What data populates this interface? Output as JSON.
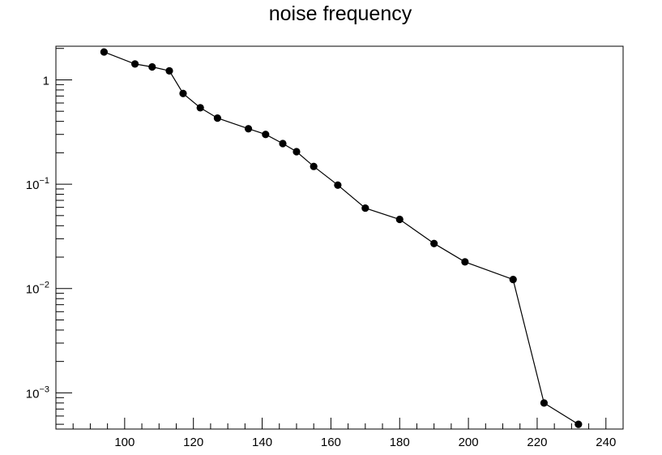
{
  "chart_data": {
    "type": "line",
    "title": "noise frequency",
    "xlabel": "",
    "ylabel": "",
    "xlim": [
      80,
      245
    ],
    "ylim": [
      0.00045,
      2.1
    ],
    "y_scale": "log",
    "grid": false,
    "legend": "none",
    "markers": "filled-circle",
    "x_ticks": [
      {
        "value": 100,
        "label": "100"
      },
      {
        "value": 120,
        "label": "120"
      },
      {
        "value": 140,
        "label": "140"
      },
      {
        "value": 160,
        "label": "160"
      },
      {
        "value": 180,
        "label": "180"
      },
      {
        "value": 200,
        "label": "200"
      },
      {
        "value": 220,
        "label": "220"
      },
      {
        "value": 240,
        "label": "240"
      }
    ],
    "y_ticks": [
      {
        "value": 1,
        "base": "1",
        "exp": ""
      },
      {
        "value": 0.1,
        "base": "10",
        "exp": "−1"
      },
      {
        "value": 0.01,
        "base": "10",
        "exp": "−2"
      },
      {
        "value": 0.001,
        "base": "10",
        "exp": "−3"
      }
    ],
    "series": [
      {
        "color": "#000000",
        "x": [
          94,
          103,
          108,
          113,
          117,
          122,
          127,
          136,
          141,
          146,
          150,
          155,
          162,
          170,
          180,
          190,
          199,
          213,
          222,
          232
        ],
        "y": [
          1.85,
          1.42,
          1.33,
          1.22,
          0.74,
          0.54,
          0.43,
          0.34,
          0.3,
          0.245,
          0.205,
          0.148,
          0.098,
          0.059,
          0.046,
          0.027,
          0.018,
          0.0122,
          0.0008,
          0.0005
        ]
      }
    ]
  }
}
